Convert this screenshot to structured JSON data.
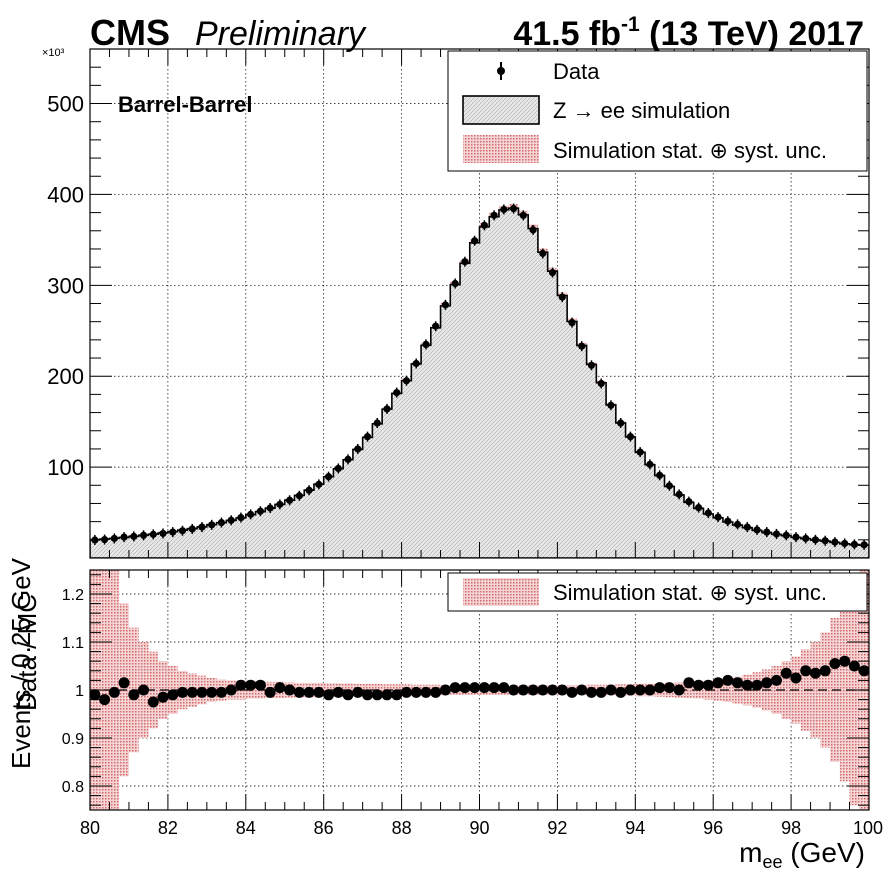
{
  "header": {
    "experiment": "CMS",
    "status": "Preliminary",
    "lumi_prefix": "41.5 fb",
    "lumi_exp": "-1",
    "lumi_suffix": " (13 TeV) 2017"
  },
  "chart_data": [
    {
      "type": "bar",
      "panel": "main",
      "ylabel": "Events / 0.25 GeV",
      "yscale_label": "×10³",
      "annotation": "Barrel-Barrel",
      "x_range": [
        80,
        100
      ],
      "ylim": [
        0,
        560000
      ],
      "y_ticks": [
        100000,
        200000,
        300000,
        400000,
        500000
      ],
      "y_tick_labels": [
        "100",
        "200",
        "300",
        "400",
        "500"
      ],
      "bin_width": 0.25,
      "grid": true,
      "legend_position": "top-right",
      "legend": {
        "data": "Data",
        "sim": "Z → ee simulation",
        "unc": "Simulation stat. ⊕ syst. unc."
      },
      "colors": {
        "sim_fill": "#dcdcdc",
        "unc_band": "#e8a0a0",
        "data": "#000000"
      },
      "series": [
        {
          "name": "Data",
          "kind": "points",
          "x": [
            80.125,
            80.375,
            80.625,
            80.875,
            81.125,
            81.375,
            81.625,
            81.875,
            82.125,
            82.375,
            82.625,
            82.875,
            83.125,
            83.375,
            83.625,
            83.875,
            84.125,
            84.375,
            84.625,
            84.875,
            85.125,
            85.375,
            85.625,
            85.875,
            86.125,
            86.375,
            86.625,
            86.875,
            87.125,
            87.375,
            87.625,
            87.875,
            88.125,
            88.375,
            88.625,
            88.875,
            89.125,
            89.375,
            89.625,
            89.875,
            90.125,
            90.375,
            90.625,
            90.875,
            91.125,
            91.375,
            91.625,
            91.875,
            92.125,
            92.375,
            92.625,
            92.875,
            93.125,
            93.375,
            93.625,
            93.875,
            94.125,
            94.375,
            94.625,
            94.875,
            95.125,
            95.375,
            95.625,
            95.875,
            96.125,
            96.375,
            96.625,
            96.875,
            97.125,
            97.375,
            97.625,
            97.875,
            98.125,
            98.375,
            98.625,
            98.875,
            99.125,
            99.375,
            99.625,
            99.875
          ],
          "values": [
            19800,
            20300,
            21500,
            23000,
            23800,
            25000,
            26000,
            27000,
            28500,
            30000,
            32000,
            34000,
            36500,
            39000,
            41500,
            44500,
            48000,
            51500,
            55000,
            59000,
            63500,
            68500,
            74500,
            81000,
            89500,
            98500,
            108500,
            120000,
            133500,
            148500,
            164000,
            182000,
            195000,
            214000,
            235000,
            255000,
            278500,
            302000,
            326000,
            349000,
            366000,
            377000,
            383500,
            384500,
            377000,
            361000,
            335000,
            314000,
            287000,
            259000,
            233000,
            212000,
            192000,
            168000,
            148500,
            133500,
            116500,
            103000,
            91000,
            79500,
            70000,
            62000,
            55500,
            49500,
            45000,
            40500,
            37000,
            34000,
            31000,
            28500,
            26500,
            25000,
            23000,
            21500,
            20000,
            19000,
            17500,
            16000,
            15000,
            14500
          ]
        },
        {
          "name": "Z → ee simulation",
          "kind": "histogram",
          "values": [
            20000,
            20700,
            21600,
            22600,
            23800,
            25000,
            26200,
            27600,
            29000,
            30600,
            32200,
            34200,
            36600,
            38900,
            41300,
            44000,
            47700,
            51000,
            54800,
            58900,
            63600,
            68800,
            74600,
            81200,
            89400,
            98200,
            108100,
            119400,
            132700,
            147600,
            163800,
            181100,
            195000,
            213500,
            234000,
            253200,
            277400,
            300700,
            324200,
            346800,
            364300,
            375500,
            383000,
            384900,
            377500,
            362500,
            336500,
            315500,
            288800,
            260300,
            233900,
            213000,
            192800,
            168400,
            148600,
            133200,
            116300,
            102700,
            90700,
            78700,
            69400,
            61200,
            54500,
            48400,
            44200,
            39600,
            36200,
            33400,
            30400,
            28000,
            26000,
            24500,
            22600,
            21200,
            19700,
            18600,
            17100,
            15600,
            14600,
            14100
          ]
        }
      ]
    },
    {
      "type": "scatter",
      "panel": "ratio",
      "ylabel": "Data / MC",
      "xlabel_main": "m",
      "xlabel_sub": "ee",
      "xlabel_unit": " (GeV)",
      "x_range": [
        80,
        100
      ],
      "ylim": [
        0.75,
        1.25
      ],
      "y_ticks": [
        0.8,
        0.9,
        1.0,
        1.1,
        1.2
      ],
      "y_tick_labels": [
        "0.8",
        "0.9",
        "1",
        "1.1",
        "1.2"
      ],
      "x_ticks": [
        80,
        82,
        84,
        86,
        88,
        90,
        92,
        94,
        96,
        98,
        100
      ],
      "x_tick_labels": [
        "80",
        "82",
        "84",
        "86",
        "88",
        "90",
        "92",
        "94",
        "96",
        "98",
        "100"
      ],
      "reference_line": 1.0,
      "legend": {
        "unc": "Simulation stat. ⊕ syst. unc."
      },
      "unc_halfwidth": [
        0.3,
        0.3,
        0.25,
        0.18,
        0.13,
        0.1,
        0.08,
        0.06,
        0.05,
        0.04,
        0.035,
        0.03,
        0.025,
        0.022,
        0.02,
        0.02,
        0.018,
        0.018,
        0.017,
        0.017,
        0.016,
        0.015,
        0.015,
        0.015,
        0.014,
        0.014,
        0.014,
        0.013,
        0.013,
        0.013,
        0.012,
        0.012,
        0.012,
        0.011,
        0.011,
        0.011,
        0.01,
        0.01,
        0.01,
        0.01,
        0.01,
        0.01,
        0.01,
        0.01,
        0.01,
        0.01,
        0.01,
        0.01,
        0.01,
        0.01,
        0.01,
        0.011,
        0.011,
        0.011,
        0.012,
        0.012,
        0.013,
        0.013,
        0.014,
        0.015,
        0.016,
        0.017,
        0.018,
        0.02,
        0.022,
        0.025,
        0.028,
        0.032,
        0.037,
        0.043,
        0.05,
        0.06,
        0.07,
        0.085,
        0.1,
        0.12,
        0.15,
        0.19,
        0.24,
        0.3
      ],
      "x": [
        80.125,
        80.375,
        80.625,
        80.875,
        81.125,
        81.375,
        81.625,
        81.875,
        82.125,
        82.375,
        82.625,
        82.875,
        83.125,
        83.375,
        83.625,
        83.875,
        84.125,
        84.375,
        84.625,
        84.875,
        85.125,
        85.375,
        85.625,
        85.875,
        86.125,
        86.375,
        86.625,
        86.875,
        87.125,
        87.375,
        87.625,
        87.875,
        88.125,
        88.375,
        88.625,
        88.875,
        89.125,
        89.375,
        89.625,
        89.875,
        90.125,
        90.375,
        90.625,
        90.875,
        91.125,
        91.375,
        91.625,
        91.875,
        92.125,
        92.375,
        92.625,
        92.875,
        93.125,
        93.375,
        93.625,
        93.875,
        94.125,
        94.375,
        94.625,
        94.875,
        95.125,
        95.375,
        95.625,
        95.875,
        96.125,
        96.375,
        96.625,
        96.875,
        97.125,
        97.375,
        97.625,
        97.875,
        98.125,
        98.375,
        98.625,
        98.875,
        99.125,
        99.375,
        99.625,
        99.875
      ],
      "values": [
        0.99,
        0.98,
        0.995,
        1.015,
        0.99,
        1.0,
        0.975,
        0.985,
        0.99,
        0.995,
        0.995,
        0.995,
        0.995,
        0.995,
        1.0,
        1.01,
        1.01,
        1.01,
        0.995,
        1.005,
        1.0,
        0.995,
        0.995,
        0.995,
        0.99,
        0.995,
        0.99,
        0.995,
        0.99,
        0.99,
        0.99,
        0.99,
        0.995,
        0.995,
        0.995,
        0.995,
        1.0,
        1.005,
        1.005,
        1.005,
        1.005,
        1.005,
        1.005,
        1.0,
        1.0,
        1.0,
        1.0,
        1.0,
        1.0,
        0.995,
        1.0,
        0.995,
        0.995,
        1.0,
        0.995,
        1.0,
        1.0,
        1.0,
        1.005,
        1.005,
        1.0,
        1.015,
        1.01,
        1.01,
        1.015,
        1.02,
        1.015,
        1.01,
        1.01,
        1.015,
        1.02,
        1.035,
        1.025,
        1.04,
        1.035,
        1.04,
        1.055,
        1.06,
        1.05,
        1.04
      ]
    }
  ]
}
